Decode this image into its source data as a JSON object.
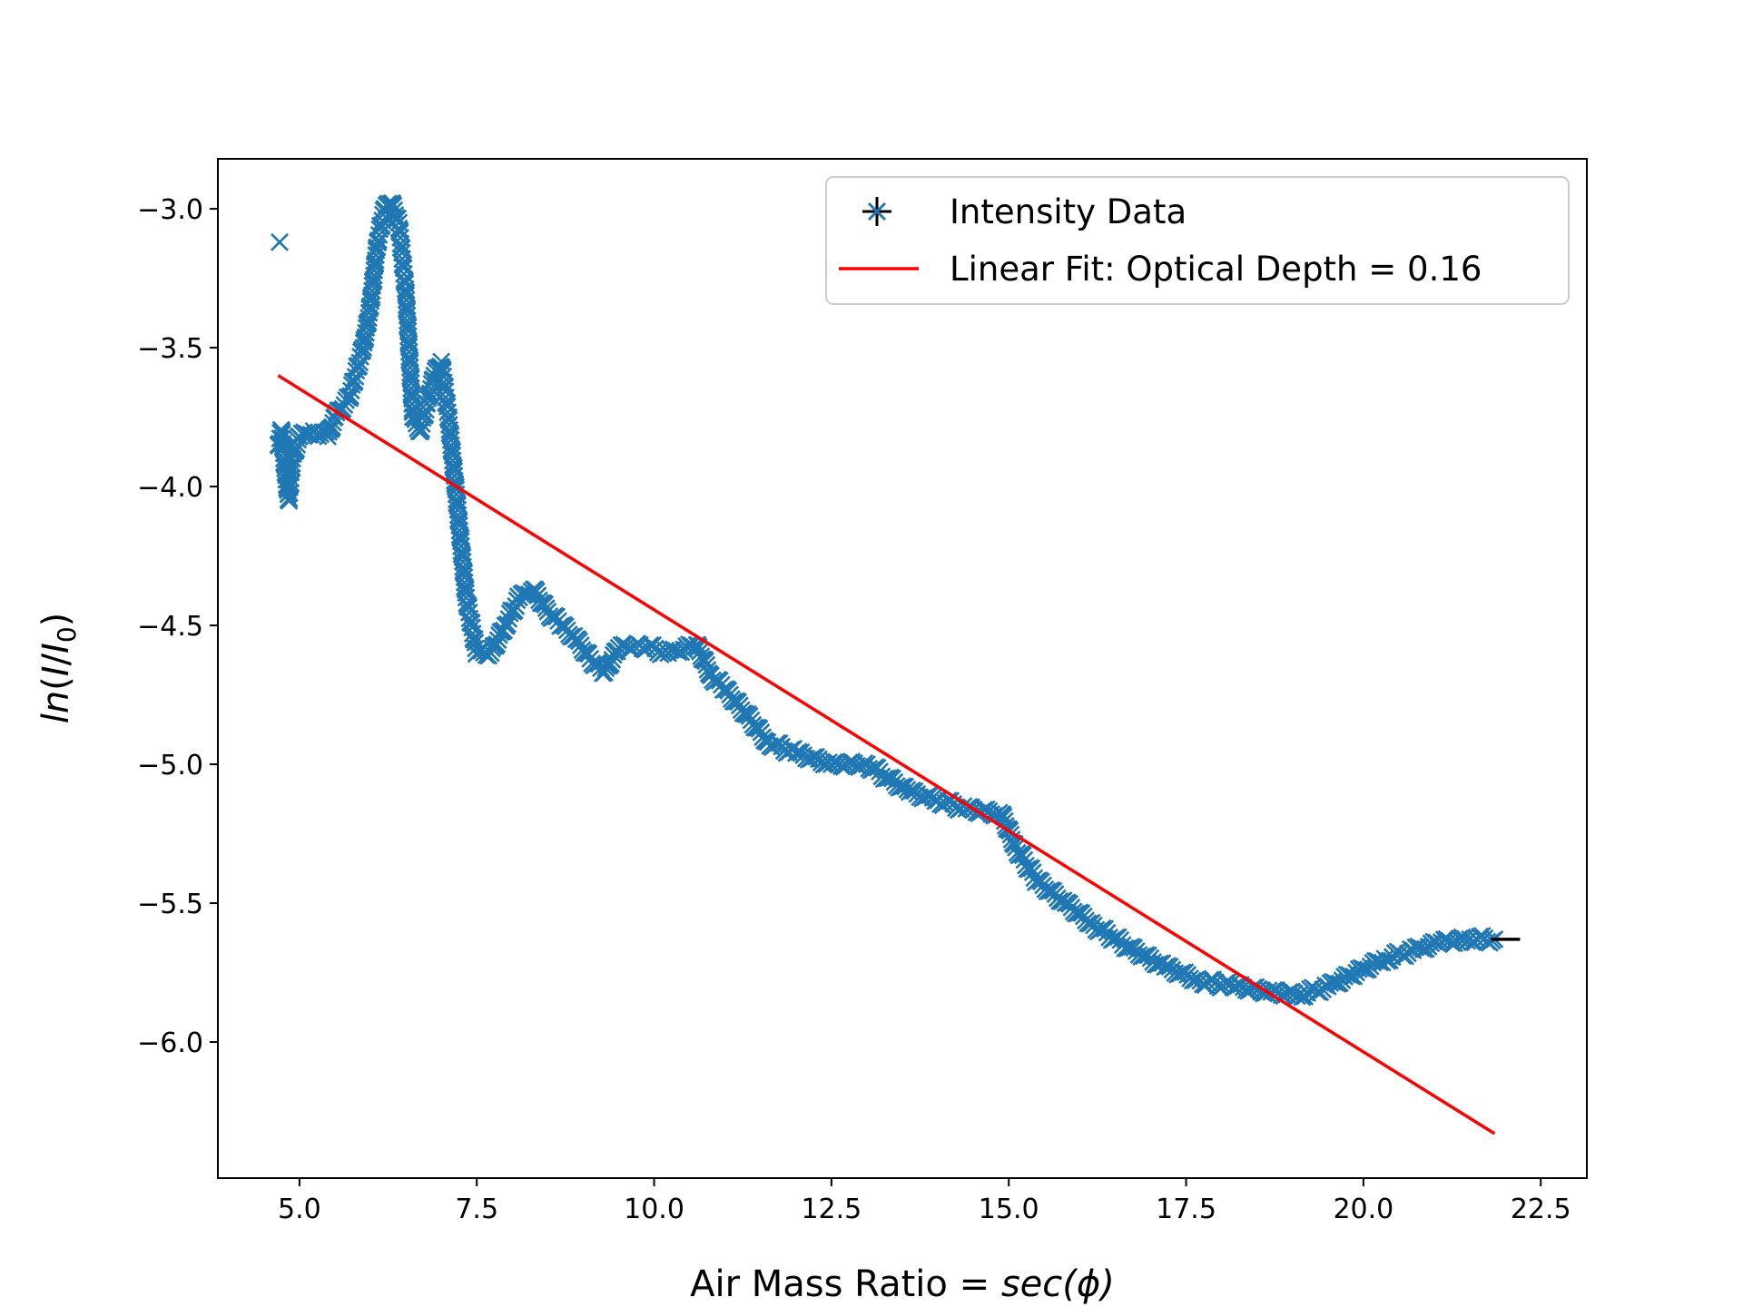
{
  "chart_data": {
    "type": "scatter",
    "xlabel_prefix": "Air Mass Ratio = ",
    "xlabel_math": "sec(ϕ)",
    "ylabel_func": "ln",
    "ylabel_I": "I",
    "ylabel_I0_base": "I",
    "ylabel_I0_sub": "0",
    "xlim": [
      3.85,
      23.15
    ],
    "ylim": [
      -6.49,
      -2.82
    ],
    "xticks": [
      "5.0",
      "7.5",
      "10.0",
      "12.5",
      "15.0",
      "17.5",
      "20.0",
      "22.5"
    ],
    "yticks": [
      "−3.0",
      "−3.5",
      "−4.0",
      "−4.5",
      "−5.0",
      "−5.5",
      "−6.0"
    ],
    "grid": false,
    "legend_position": "upper right",
    "series": [
      {
        "name": "Intensity Data",
        "marker": "x",
        "color": "#1f77b4",
        "errorbar_color": "#000000",
        "outlier": [
          4.72,
          -3.12
        ],
        "trace": [
          [
            4.7,
            -3.85
          ],
          [
            4.75,
            -3.8
          ],
          [
            4.8,
            -3.95
          ],
          [
            4.85,
            -4.05
          ],
          [
            4.9,
            -3.9
          ],
          [
            5.0,
            -3.82
          ],
          [
            5.2,
            -3.8
          ],
          [
            5.4,
            -3.82
          ],
          [
            5.5,
            -3.75
          ],
          [
            5.7,
            -3.68
          ],
          [
            5.9,
            -3.5
          ],
          [
            6.0,
            -3.35
          ],
          [
            6.1,
            -3.12
          ],
          [
            6.2,
            -3.0
          ],
          [
            6.3,
            -2.98
          ],
          [
            6.4,
            -3.05
          ],
          [
            6.5,
            -3.3
          ],
          [
            6.6,
            -3.75
          ],
          [
            6.7,
            -3.8
          ],
          [
            6.8,
            -3.7
          ],
          [
            6.9,
            -3.6
          ],
          [
            7.0,
            -3.55
          ],
          [
            7.1,
            -3.75
          ],
          [
            7.2,
            -4.0
          ],
          [
            7.35,
            -4.4
          ],
          [
            7.5,
            -4.6
          ],
          [
            7.7,
            -4.6
          ],
          [
            7.9,
            -4.5
          ],
          [
            8.1,
            -4.4
          ],
          [
            8.3,
            -4.37
          ],
          [
            8.5,
            -4.45
          ],
          [
            8.7,
            -4.5
          ],
          [
            8.9,
            -4.55
          ],
          [
            9.1,
            -4.62
          ],
          [
            9.3,
            -4.67
          ],
          [
            9.5,
            -4.58
          ],
          [
            9.8,
            -4.57
          ],
          [
            10.2,
            -4.6
          ],
          [
            10.6,
            -4.57
          ],
          [
            10.8,
            -4.68
          ],
          [
            11.0,
            -4.73
          ],
          [
            11.3,
            -4.82
          ],
          [
            11.6,
            -4.92
          ],
          [
            12.0,
            -4.96
          ],
          [
            12.5,
            -5.0
          ],
          [
            13.0,
            -5.0
          ],
          [
            13.3,
            -5.05
          ],
          [
            13.6,
            -5.1
          ],
          [
            14.0,
            -5.13
          ],
          [
            14.4,
            -5.16
          ],
          [
            14.9,
            -5.18
          ],
          [
            15.1,
            -5.3
          ],
          [
            15.4,
            -5.42
          ],
          [
            15.8,
            -5.5
          ],
          [
            16.2,
            -5.58
          ],
          [
            16.7,
            -5.66
          ],
          [
            17.2,
            -5.73
          ],
          [
            17.7,
            -5.78
          ],
          [
            18.2,
            -5.8
          ],
          [
            18.7,
            -5.82
          ],
          [
            19.1,
            -5.83
          ],
          [
            19.5,
            -5.8
          ],
          [
            19.9,
            -5.75
          ],
          [
            20.3,
            -5.7
          ],
          [
            20.7,
            -5.67
          ],
          [
            21.1,
            -5.64
          ],
          [
            21.5,
            -5.63
          ],
          [
            21.85,
            -5.63
          ]
        ],
        "last_errorbar": [
          21.85,
          -5.63
        ]
      },
      {
        "name": "Linear Fit: Optical Depth = 0.16",
        "type": "line",
        "color": "#ff0000",
        "x": [
          4.7,
          21.85
        ],
        "y": [
          -3.6,
          -6.33
        ]
      }
    ]
  }
}
